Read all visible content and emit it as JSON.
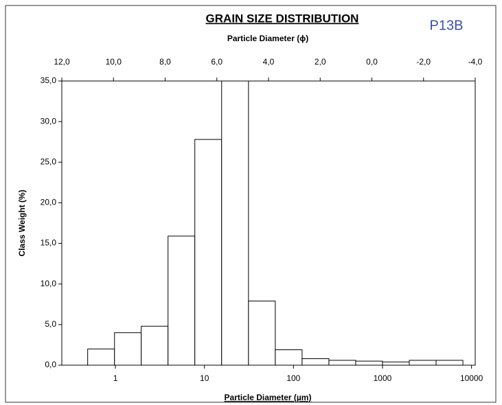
{
  "chart_data": {
    "type": "histogram",
    "title": "GRAIN SIZE DISTRIBUTION",
    "annotation": "P13B",
    "x2_label": "Particle Diameter (ϕ)",
    "x_label": "Particle Diameter (µm)",
    "y_label": "Class Weight (%)",
    "bins": [
      0.488,
      0.977,
      1.95,
      3.9,
      7.8,
      15.6,
      31.25,
      62.5,
      125,
      250,
      500,
      1000,
      2000,
      4000,
      8000
    ],
    "values": [
      2.0,
      4.0,
      4.8,
      15.9,
      27.8,
      35.0,
      7.9,
      1.9,
      0.8,
      0.6,
      0.5,
      0.4,
      0.6,
      0.6
    ],
    "color": "#ffffff",
    "x_log": true,
    "xlim": [
      0.25,
      11000
    ],
    "xticks": [
      1,
      10,
      100,
      1000,
      10000
    ],
    "x2lim": [
      12,
      -4
    ],
    "x2ticks": [
      {
        "value": 12,
        "label": "12,0"
      },
      {
        "value": 10,
        "label": "10,0"
      },
      {
        "value": 8,
        "label": "8,0"
      },
      {
        "value": 6,
        "label": "6,0"
      },
      {
        "value": 4,
        "label": "4,0"
      },
      {
        "value": 2,
        "label": "2,0"
      },
      {
        "value": 0,
        "label": "0,0"
      },
      {
        "value": -2,
        "label": "-2,0"
      },
      {
        "value": -4,
        "label": "-4,0"
      }
    ],
    "ylim": [
      0,
      35
    ],
    "yticks": [
      {
        "value": 0,
        "label": "0,0"
      },
      {
        "value": 5,
        "label": "5,0"
      },
      {
        "value": 10,
        "label": "10,0"
      },
      {
        "value": 15,
        "label": "15,0"
      },
      {
        "value": 20,
        "label": "20,0"
      },
      {
        "value": 25,
        "label": "25,0"
      },
      {
        "value": 30,
        "label": "30,0"
      },
      {
        "value": 35,
        "label": "35,0"
      }
    ],
    "grid": false
  }
}
